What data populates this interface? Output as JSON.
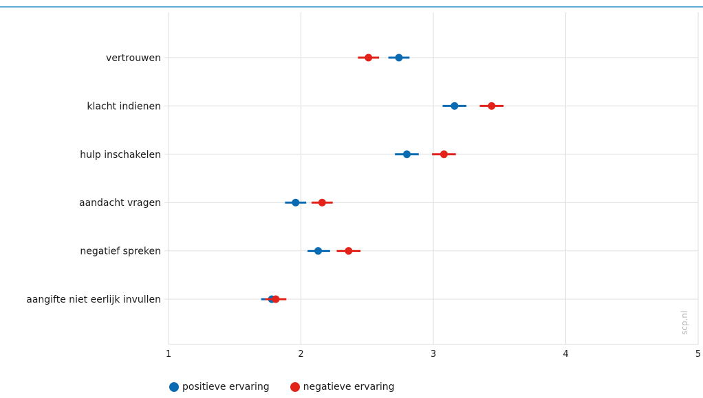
{
  "chart_data": {
    "type": "dot",
    "categories": [
      "vertrouwen",
      "klacht indienen",
      "hulp inschakelen",
      "aandacht vragen",
      "negatief spreken",
      "aangifte niet eerlijk invullen"
    ],
    "series": [
      {
        "name": "positieve ervaring",
        "color": "#0a6bb3",
        "values": [
          2.74,
          3.16,
          2.8,
          1.96,
          2.13,
          1.78
        ],
        "ci_low": [
          2.66,
          3.07,
          2.71,
          1.88,
          2.05,
          1.7
        ],
        "ci_high": [
          2.82,
          3.25,
          2.89,
          2.04,
          2.22,
          1.86
        ]
      },
      {
        "name": "negatieve ervaring",
        "color": "#e2231a",
        "values": [
          2.51,
          3.44,
          3.08,
          2.16,
          2.36,
          1.81
        ],
        "ci_low": [
          2.43,
          3.35,
          2.99,
          2.08,
          2.27,
          1.73
        ],
        "ci_high": [
          2.59,
          3.53,
          3.17,
          2.24,
          2.45,
          1.89
        ]
      }
    ],
    "xlim": [
      1,
      5
    ],
    "xticks": [
      "1",
      "2",
      "3",
      "4",
      "5"
    ],
    "grid": true,
    "legend_position": "bottom-left",
    "watermark": "scp.nl",
    "top_rule_color": "#2a8fc7"
  }
}
